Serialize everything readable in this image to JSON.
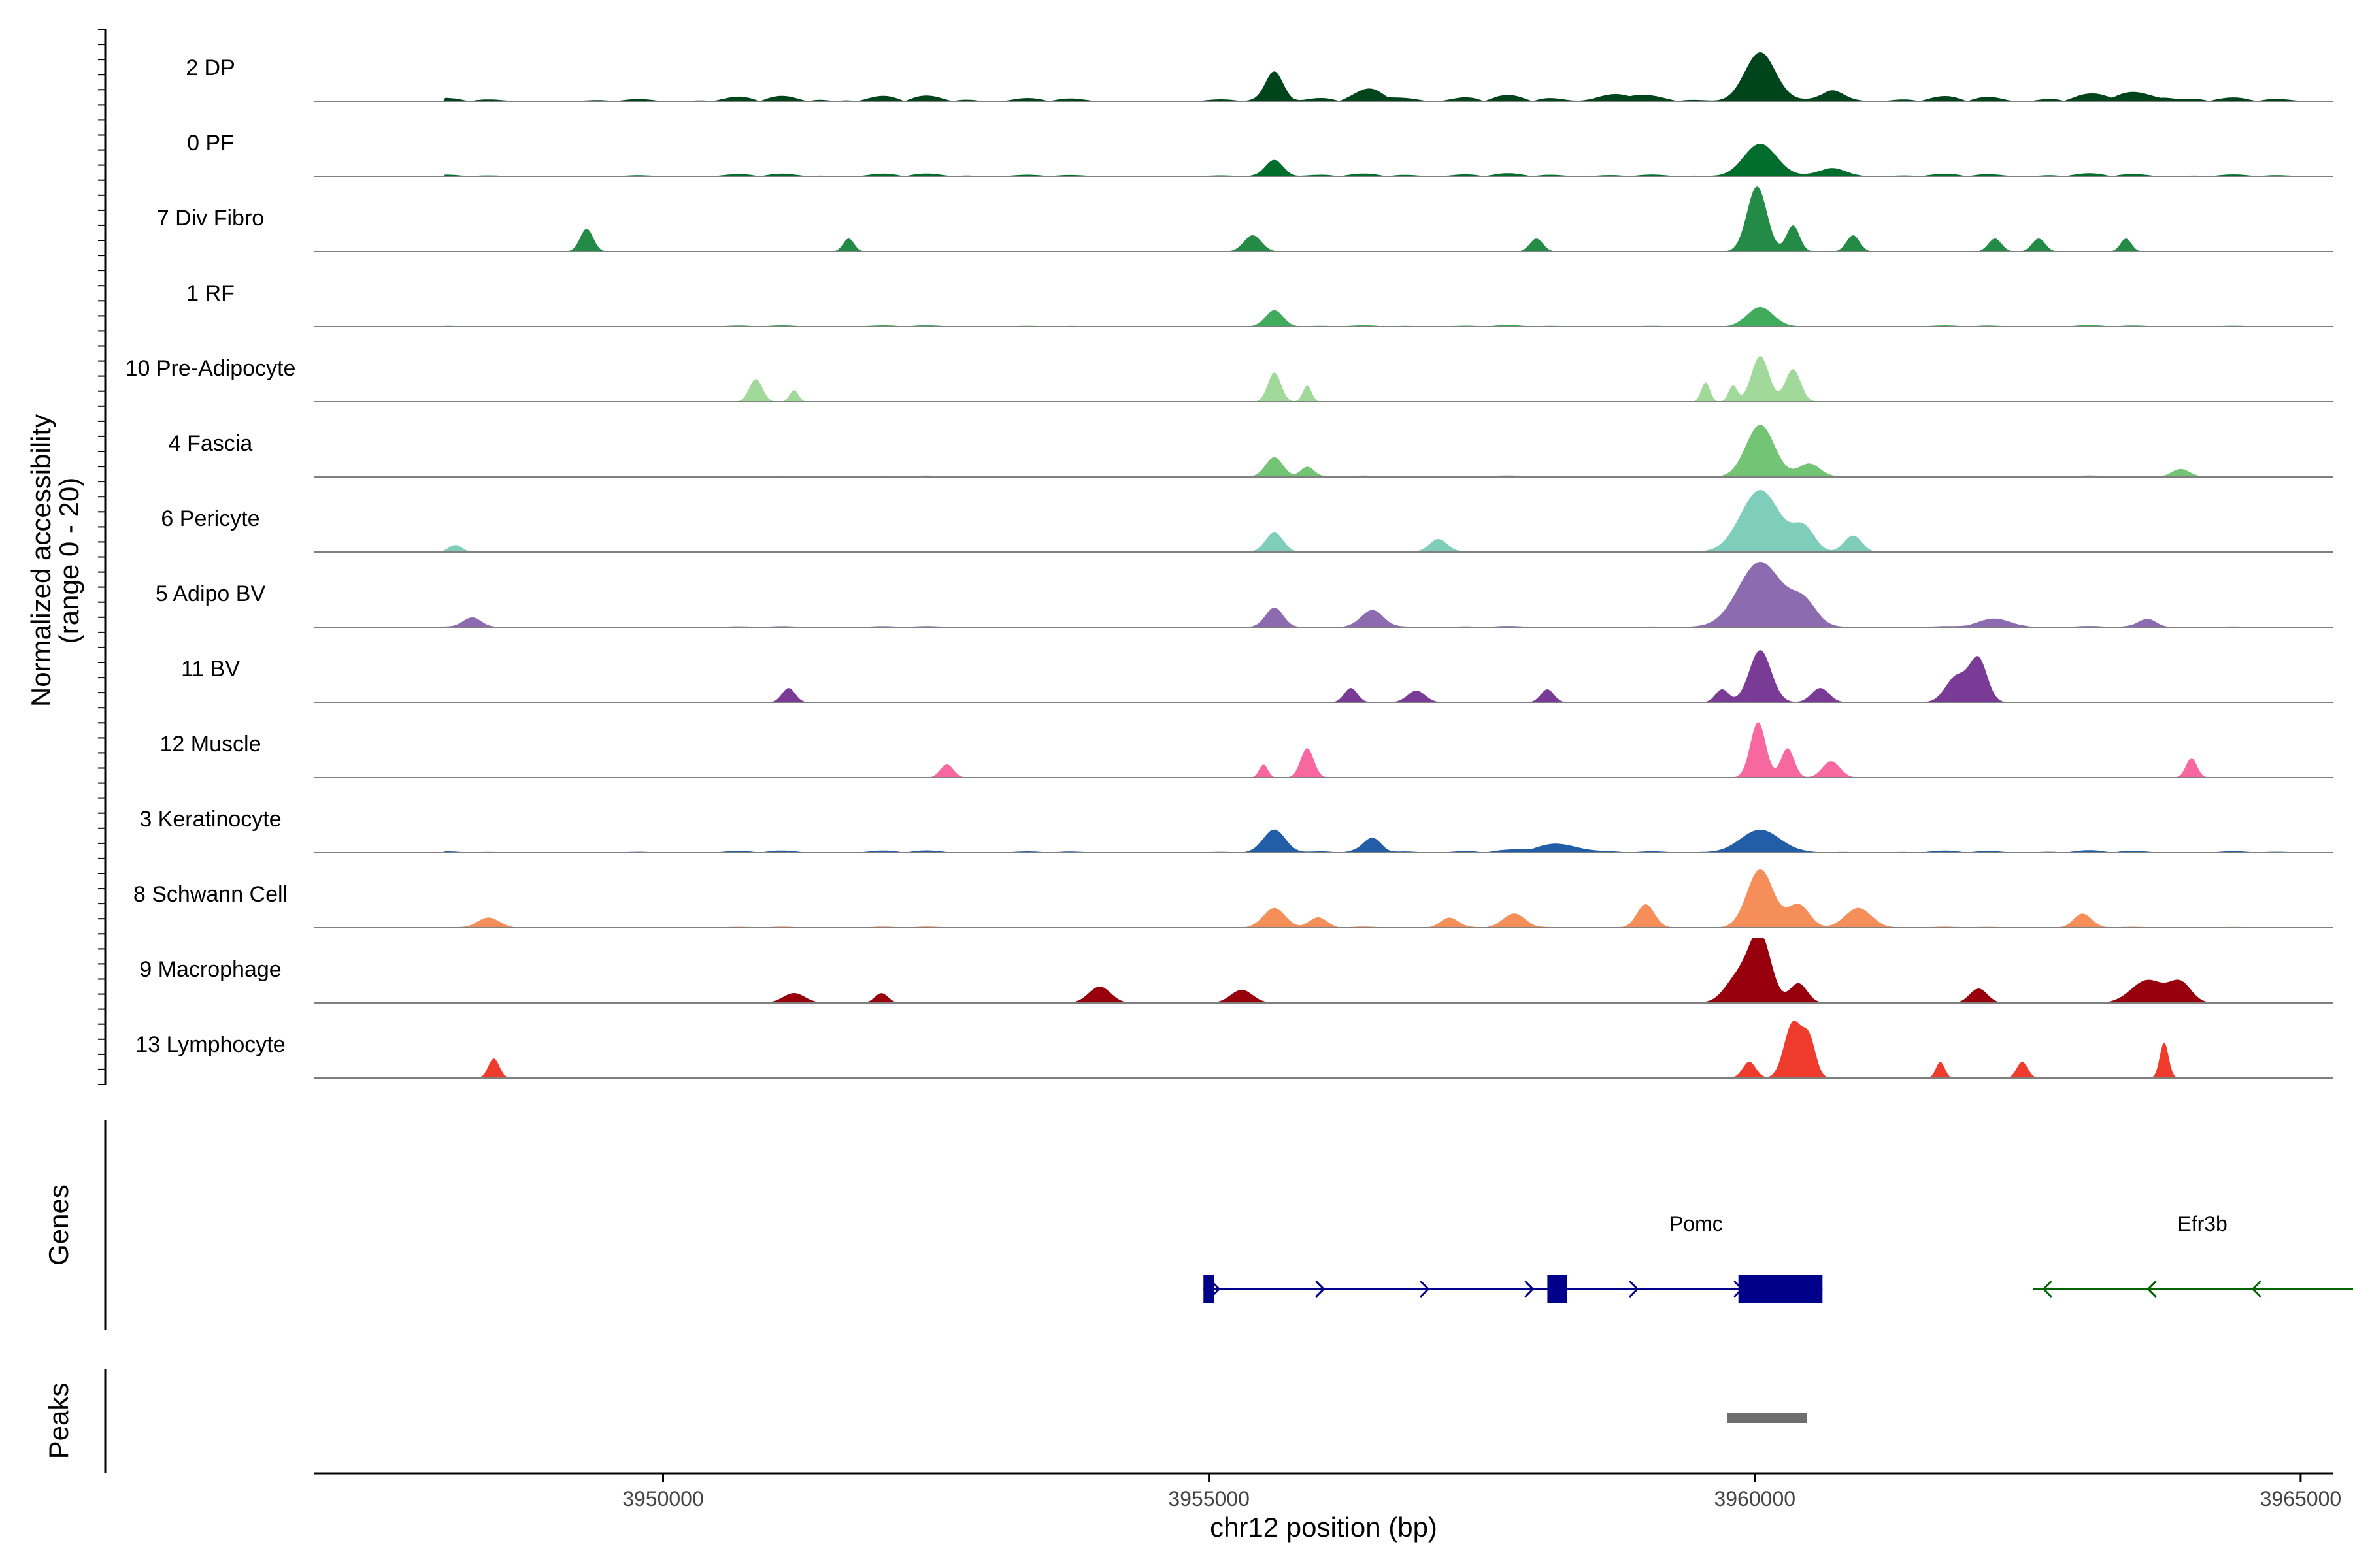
{
  "chart_data": {
    "type": "area",
    "y_axis": {
      "title_line1": "Normalized accessibility",
      "title_line2": "(range 0 - 20)",
      "ylim": [
        0,
        20
      ]
    },
    "x_axis": {
      "title": "chr12 position (bp)",
      "xlim": [
        3946800,
        3965300
      ],
      "ticks": [
        {
          "value": 3950000,
          "label": "3950000"
        },
        {
          "value": 3955000,
          "label": "3955000"
        },
        {
          "value": 3960000,
          "label": "3960000"
        },
        {
          "value": 3965000,
          "label": "3965000"
        }
      ]
    },
    "tracks": [
      {
        "label": "2 DP",
        "color": "#00441b",
        "base": 0.2,
        "peaks": [
          [
            3955600,
            0.45,
            80
          ],
          [
            3960050,
            0.75,
            140
          ],
          [
            3956500,
            0.12,
            120
          ],
          [
            3960700,
            0.15,
            100
          ],
          [
            3958800,
            0.08,
            200
          ],
          [
            3963500,
            0.07,
            300
          ]
        ]
      },
      {
        "label": "0 PF",
        "color": "#006d2c",
        "base": 0.1,
        "peaks": [
          [
            3955600,
            0.25,
            80
          ],
          [
            3960050,
            0.5,
            150
          ],
          [
            3960700,
            0.12,
            120
          ]
        ]
      },
      {
        "label": "7 Div Fibro",
        "color": "#238b45",
        "base": 0,
        "peaks": [
          [
            3949300,
            0.35,
            60
          ],
          [
            3951700,
            0.2,
            50
          ],
          [
            3955400,
            0.25,
            80
          ],
          [
            3958000,
            0.2,
            60
          ],
          [
            3960020,
            1.0,
            90
          ],
          [
            3960350,
            0.4,
            60
          ],
          [
            3960900,
            0.25,
            60
          ],
          [
            3962200,
            0.2,
            60
          ],
          [
            3962600,
            0.2,
            60
          ],
          [
            3963400,
            0.2,
            50
          ]
        ]
      },
      {
        "label": "1 RF",
        "color": "#41ab5d",
        "base": 0.05,
        "peaks": [
          [
            3955600,
            0.25,
            80
          ],
          [
            3960050,
            0.3,
            120
          ]
        ]
      },
      {
        "label": "10 Pre-Adipocyte",
        "color": "#a1d99b",
        "base": 0,
        "peaks": [
          [
            3950850,
            0.35,
            60
          ],
          [
            3951200,
            0.18,
            40
          ],
          [
            3955600,
            0.45,
            60
          ],
          [
            3955900,
            0.25,
            40
          ],
          [
            3959550,
            0.3,
            40
          ],
          [
            3959800,
            0.25,
            40
          ],
          [
            3960050,
            0.7,
            80
          ],
          [
            3960350,
            0.5,
            70
          ]
        ]
      },
      {
        "label": "4 Fascia",
        "color": "#74c476",
        "base": 0.05,
        "peaks": [
          [
            3955600,
            0.3,
            80
          ],
          [
            3955900,
            0.15,
            60
          ],
          [
            3960050,
            0.8,
            130
          ],
          [
            3960500,
            0.2,
            100
          ],
          [
            3963900,
            0.12,
            80
          ]
        ]
      },
      {
        "label": "6 Pericyte",
        "color": "#7fcdbb",
        "base": 0.04,
        "peaks": [
          [
            3948100,
            0.1,
            60
          ],
          [
            3955600,
            0.3,
            80
          ],
          [
            3957100,
            0.2,
            80
          ],
          [
            3960050,
            0.95,
            180
          ],
          [
            3960450,
            0.35,
            100
          ],
          [
            3960900,
            0.25,
            80
          ]
        ]
      },
      {
        "label": "5 Adipo BV",
        "color": "#8c6bb1",
        "base": 0.04,
        "peaks": [
          [
            3948250,
            0.15,
            80
          ],
          [
            3955600,
            0.3,
            80
          ],
          [
            3956500,
            0.25,
            100
          ],
          [
            3960050,
            1.0,
            200
          ],
          [
            3960450,
            0.35,
            120
          ],
          [
            3962200,
            0.12,
            150
          ],
          [
            3963600,
            0.12,
            80
          ]
        ]
      },
      {
        "label": "11 BV",
        "color": "#7a3b96",
        "base": 0,
        "peaks": [
          [
            3951150,
            0.22,
            60
          ],
          [
            3956300,
            0.22,
            60
          ],
          [
            3956900,
            0.18,
            80
          ],
          [
            3958100,
            0.2,
            60
          ],
          [
            3959700,
            0.2,
            60
          ],
          [
            3960050,
            0.8,
            100
          ],
          [
            3960600,
            0.22,
            80
          ],
          [
            3961850,
            0.4,
            100
          ],
          [
            3962050,
            0.65,
            80
          ]
        ]
      },
      {
        "label": "12 Muscle",
        "color": "#f768a1",
        "base": 0,
        "peaks": [
          [
            3952600,
            0.2,
            60
          ],
          [
            3955900,
            0.45,
            60
          ],
          [
            3955500,
            0.2,
            40
          ],
          [
            3960030,
            0.85,
            70
          ],
          [
            3960300,
            0.45,
            60
          ],
          [
            3960700,
            0.25,
            80
          ],
          [
            3964000,
            0.3,
            50
          ]
        ]
      },
      {
        "label": "3 Keratinocyte",
        "color": "#225ea8",
        "base": 0.08,
        "peaks": [
          [
            3955600,
            0.35,
            100
          ],
          [
            3956500,
            0.2,
            80
          ],
          [
            3960050,
            0.35,
            180
          ],
          [
            3958200,
            0.12,
            200
          ]
        ]
      },
      {
        "label": "8 Schwann Cell",
        "color": "#f68e5a",
        "base": 0.04,
        "peaks": [
          [
            3948400,
            0.15,
            100
          ],
          [
            3955600,
            0.3,
            100
          ],
          [
            3956000,
            0.15,
            80
          ],
          [
            3957200,
            0.15,
            80
          ],
          [
            3957800,
            0.2,
            100
          ],
          [
            3959000,
            0.35,
            80
          ],
          [
            3960050,
            0.9,
            120
          ],
          [
            3960400,
            0.35,
            100
          ],
          [
            3960950,
            0.3,
            120
          ],
          [
            3963000,
            0.2,
            80
          ]
        ]
      },
      {
        "label": "9 Macrophage",
        "color": "#99000d",
        "base": 0,
        "peaks": [
          [
            3951200,
            0.15,
            100
          ],
          [
            3952000,
            0.15,
            60
          ],
          [
            3954000,
            0.25,
            100
          ],
          [
            3955300,
            0.2,
            100
          ],
          [
            3959850,
            0.4,
            120
          ],
          [
            3960050,
            1.0,
            100
          ],
          [
            3960400,
            0.3,
            80
          ],
          [
            3962050,
            0.22,
            80
          ],
          [
            3963600,
            0.35,
            150
          ],
          [
            3963900,
            0.3,
            100
          ]
        ]
      },
      {
        "label": "13 Lymphocyte",
        "color": "#ef3b2c",
        "base": 0,
        "peaks": [
          [
            3948450,
            0.3,
            50
          ],
          [
            3959950,
            0.25,
            60
          ],
          [
            3960350,
            0.85,
            80
          ],
          [
            3960500,
            0.55,
            60
          ],
          [
            3961700,
            0.25,
            40
          ],
          [
            3962450,
            0.25,
            50
          ],
          [
            3963750,
            0.55,
            40
          ]
        ]
      }
    ],
    "genes_panel": {
      "title": "Genes",
      "genes": [
        {
          "name": "Pomc",
          "color": "#00008b",
          "strand": "+",
          "start": 3954950,
          "end": 3960620,
          "exons": [
            [
              3954950,
              3955050
            ],
            [
              3958100,
              3958280
            ],
            [
              3959850,
              3960620
            ]
          ]
        },
        {
          "name": "Efr3b",
          "color": "#006400",
          "strand": "-",
          "start": 3962550,
          "end": 3965650,
          "exons": []
        }
      ]
    },
    "peaks_panel": {
      "title": "Peaks",
      "peaks": [
        [
          3959750,
          3960480
        ]
      ],
      "color": "#6e6e6e"
    }
  }
}
